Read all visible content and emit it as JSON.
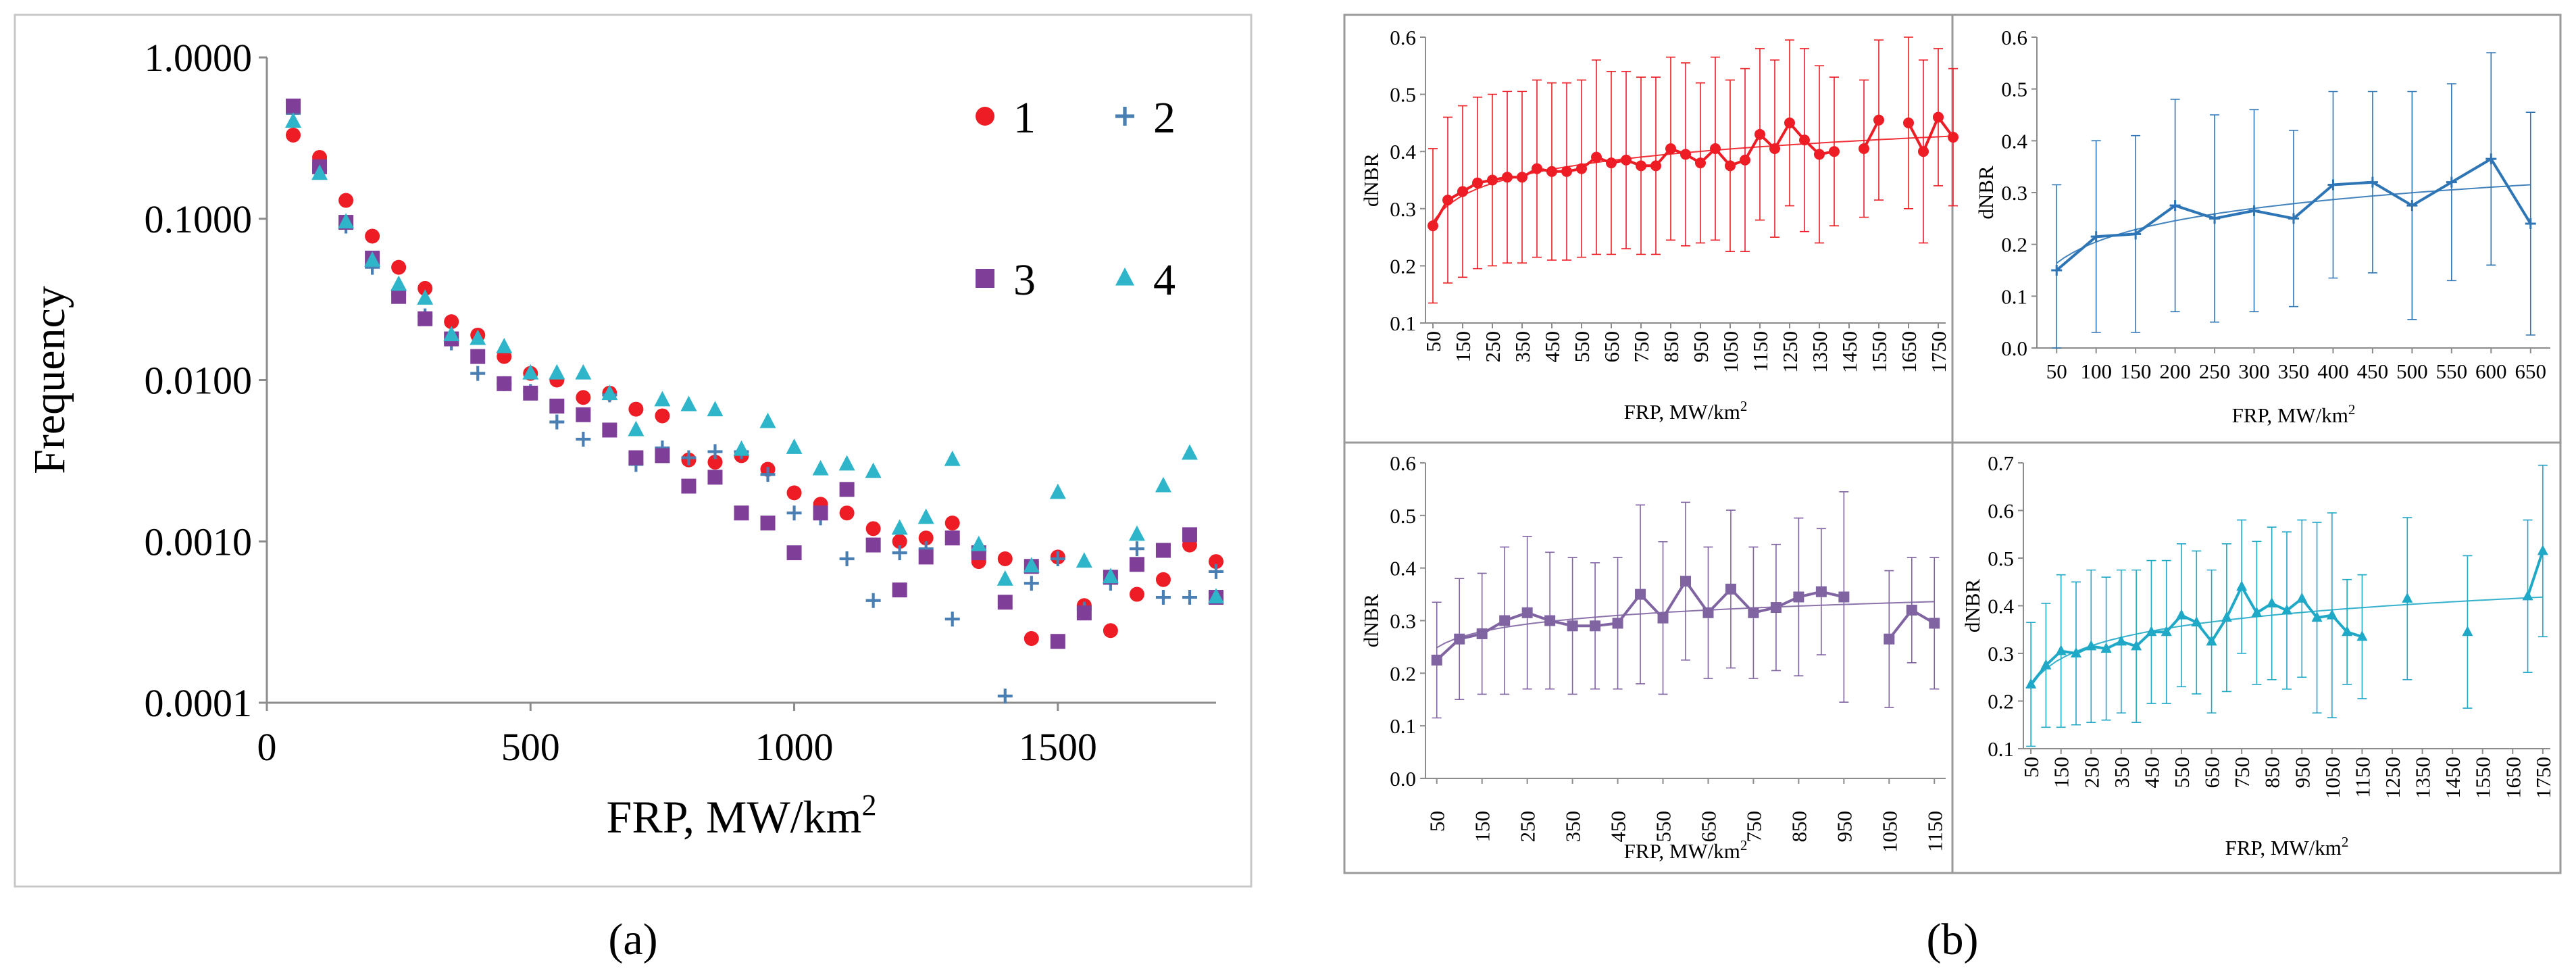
{
  "figure_labels": {
    "a": "(a)",
    "b": "(b)",
    "a_letter": "a",
    "b_letter": "b"
  },
  "colors": {
    "s1": "#ee1c24",
    "s2": "#4a7fb4",
    "s3": "#7f3f98",
    "s4": "#2eb5c9",
    "p1": "#ee1c24",
    "p2": "#2e75b6",
    "p3": "#8064a2",
    "p4": "#1fa9c7"
  },
  "chart_data": [
    {
      "id": "a",
      "type": "scatter",
      "title": "",
      "xlabel": "FRP, MW/km²",
      "xlabel_main": "FRP, MW/km",
      "xlabel_sup": "2",
      "ylabel": "Frequency",
      "yscale": "log",
      "xlim": [
        0,
        1800
      ],
      "ylim": [
        0.0001,
        1.0
      ],
      "xticks": [
        0,
        500,
        1000,
        1500
      ],
      "xtick_labels": [
        "0",
        "500",
        "1000",
        "1500"
      ],
      "yticks": [
        0.0001,
        0.001,
        0.01,
        0.1,
        1.0
      ],
      "ytick_labels": [
        "0.0001",
        "0.0010",
        "0.0100",
        "0.1000",
        "1.0000"
      ],
      "legend_position": "top-right",
      "series": [
        {
          "name": "1",
          "marker": "circle",
          "x": [
            50,
            100,
            150,
            200,
            250,
            300,
            350,
            400,
            450,
            500,
            550,
            600,
            650,
            700,
            750,
            800,
            850,
            900,
            950,
            1000,
            1050,
            1100,
            1150,
            1200,
            1250,
            1300,
            1350,
            1400,
            1450,
            1500,
            1550,
            1600,
            1650,
            1700,
            1750,
            1800
          ],
          "y": [
            0.33,
            0.24,
            0.13,
            0.078,
            0.05,
            0.037,
            0.023,
            0.019,
            0.014,
            0.011,
            0.01,
            0.0078,
            0.0083,
            0.0066,
            0.006,
            0.0032,
            0.0031,
            0.0034,
            0.0028,
            0.002,
            0.0017,
            0.0015,
            0.0012,
            0.001,
            0.00105,
            0.0013,
            0.00075,
            0.00078,
            0.00025,
            0.0008,
            0.0004,
            0.00028,
            0.00047,
            0.00058,
            0.00095,
            0.00075
          ]
        },
        {
          "name": "2",
          "marker": "plus",
          "x": [
            50,
            100,
            150,
            200,
            250,
            300,
            350,
            400,
            450,
            500,
            550,
            600,
            650,
            700,
            750,
            800,
            850,
            900,
            950,
            1000,
            1050,
            1100,
            1150,
            1200,
            1250,
            1300,
            1350,
            1400,
            1450,
            1500,
            1550,
            1600,
            1650,
            1700,
            1750,
            1800
          ],
          "y": [
            0.45,
            0.2,
            0.09,
            0.05,
            0.034,
            0.025,
            0.017,
            0.011,
            0.0095,
            0.0085,
            0.0055,
            0.0043,
            0.0081,
            0.003,
            0.0038,
            0.0033,
            0.0036,
            0.0036,
            0.0026,
            0.0015,
            0.0014,
            0.00078,
            0.00043,
            0.00085,
            0.0009,
            0.00033,
            0.00085,
            0.00011,
            0.00055,
            0.00078,
            0.00038,
            0.00055,
            0.0009,
            0.00045,
            0.00045,
            0.00065
          ]
        },
        {
          "name": "3",
          "marker": "square",
          "x": [
            50,
            100,
            150,
            200,
            250,
            300,
            350,
            400,
            450,
            500,
            550,
            600,
            650,
            700,
            750,
            800,
            850,
            900,
            950,
            1000,
            1050,
            1100,
            1150,
            1200,
            1250,
            1300,
            1350,
            1400,
            1450,
            1500,
            1550,
            1600,
            1650,
            1700,
            1750,
            1800
          ],
          "y": [
            0.5,
            0.21,
            0.095,
            0.057,
            0.033,
            0.024,
            0.018,
            0.014,
            0.0095,
            0.0083,
            0.0069,
            0.0061,
            0.0049,
            0.0033,
            0.0034,
            0.0022,
            0.0025,
            0.0015,
            0.0013,
            0.00085,
            0.0015,
            0.0021,
            0.00095,
            0.0005,
            0.0008,
            0.00105,
            0.00085,
            0.00042,
            0.0007,
            0.00024,
            0.00036,
            0.0006,
            0.00072,
            0.00088,
            0.0011,
            0.00045
          ]
        },
        {
          "name": "4",
          "marker": "triangle",
          "x": [
            50,
            100,
            150,
            200,
            250,
            300,
            350,
            400,
            450,
            500,
            550,
            600,
            650,
            700,
            750,
            800,
            850,
            900,
            950,
            1000,
            1050,
            1100,
            1150,
            1200,
            1250,
            1300,
            1350,
            1400,
            1450,
            1500,
            1550,
            1600,
            1650,
            1700,
            1750,
            1800
          ],
          "y": [
            0.4,
            0.19,
            0.095,
            0.055,
            0.039,
            0.032,
            0.019,
            0.018,
            0.016,
            0.011,
            0.011,
            0.011,
            0.0082,
            0.0049,
            0.0075,
            0.007,
            0.0065,
            0.0037,
            0.0055,
            0.0038,
            0.0028,
            0.003,
            0.0027,
            0.0012,
            0.0014,
            0.0032,
            0.00095,
            0.00058,
            0.0007,
            0.002,
            0.00075,
            0.0006,
            0.0011,
            0.0022,
            0.0035,
            0.00045
          ]
        }
      ]
    },
    {
      "id": "b1",
      "type": "line",
      "xlabel": "FRP, MW/km²",
      "xlabel_main": "FRP, MW/km",
      "xlabel_sup": "2",
      "ylabel": "dNBR",
      "marker": "circle",
      "trend": "log",
      "ylim": [
        0.1,
        0.6
      ],
      "yticks": [
        0.1,
        0.2,
        0.3,
        0.4,
        0.5,
        0.6
      ],
      "ytick_labels": [
        "0.1",
        "0.2",
        "0.3",
        "0.4",
        "0.5",
        "0.6"
      ],
      "xrange": [
        25,
        1775
      ],
      "xtick_labels": [
        "50",
        "150",
        "250",
        "350",
        "450",
        "550",
        "650",
        "750",
        "850",
        "950",
        "1050",
        "1150",
        "1250",
        "1350",
        "1450",
        "1550",
        "1650",
        "1750"
      ],
      "segments": [
        {
          "x": [
            50,
            100,
            150,
            200,
            250,
            300,
            350,
            400,
            450,
            500,
            550,
            600,
            650,
            700,
            750,
            800,
            850,
            900,
            950,
            1000,
            1050,
            1100,
            1150,
            1200,
            1250,
            1300,
            1350,
            1400
          ],
          "y": [
            0.27,
            0.315,
            0.33,
            0.345,
            0.35,
            0.355,
            0.355,
            0.37,
            0.365,
            0.365,
            0.37,
            0.39,
            0.38,
            0.385,
            0.375,
            0.375,
            0.405,
            0.395,
            0.38,
            0.405,
            0.375,
            0.385,
            0.43,
            0.405,
            0.45,
            0.42,
            0.395,
            0.4
          ],
          "err": [
            0.135,
            0.145,
            0.15,
            0.15,
            0.15,
            0.15,
            0.15,
            0.155,
            0.155,
            0.155,
            0.155,
            0.17,
            0.16,
            0.155,
            0.155,
            0.155,
            0.16,
            0.16,
            0.14,
            0.16,
            0.15,
            0.16,
            0.15,
            0.155,
            0.145,
            0.16,
            0.155,
            0.13
          ]
        },
        {
          "x": [
            1500,
            1550
          ],
          "y": [
            0.405,
            0.455
          ],
          "err": [
            0.12,
            0.14
          ]
        },
        {
          "x": [
            1650,
            1700,
            1750,
            1800
          ],
          "y": [
            0.45,
            0.4,
            0.46,
            0.425
          ],
          "err": [
            0.15,
            0.16,
            0.12,
            0.12
          ]
        }
      ]
    },
    {
      "id": "b2",
      "type": "line",
      "xlabel": "FRP, MW/km²",
      "xlabel_main": "FRP, MW/km",
      "xlabel_sup": "2",
      "ylabel": "dNBR",
      "marker": "plus",
      "trend": "log",
      "ylim": [
        0.0,
        0.6
      ],
      "yticks": [
        0.0,
        0.1,
        0.2,
        0.3,
        0.4,
        0.5,
        0.6
      ],
      "ytick_labels": [
        "0.0",
        "0.1",
        "0.2",
        "0.3",
        "0.4",
        "0.5",
        "0.6"
      ],
      "xrange": [
        25,
        675
      ],
      "xtick_labels": [
        "50",
        "100",
        "150",
        "200",
        "250",
        "300",
        "350",
        "400",
        "450",
        "500",
        "550",
        "600",
        "650"
      ],
      "segments": [
        {
          "x": [
            50,
            100,
            150,
            200,
            250,
            300,
            350,
            400,
            450,
            500,
            550,
            600,
            650
          ],
          "y": [
            0.15,
            0.215,
            0.22,
            0.275,
            0.25,
            0.265,
            0.25,
            0.315,
            0.32,
            0.275,
            0.32,
            0.365,
            0.24
          ],
          "err": [
            0.165,
            0.185,
            0.19,
            0.205,
            0.2,
            0.195,
            0.17,
            0.18,
            0.175,
            0.22,
            0.19,
            0.205,
            0.215
          ]
        }
      ]
    },
    {
      "id": "b3",
      "type": "line",
      "xlabel": "FRP, MW/km²",
      "xlabel_main": "FRP, MW/km",
      "xlabel_sup": "2",
      "ylabel": "dNBR",
      "marker": "square",
      "trend": "log",
      "ylim": [
        0.0,
        0.6
      ],
      "yticks": [
        0.0,
        0.1,
        0.2,
        0.3,
        0.4,
        0.5,
        0.6
      ],
      "ytick_labels": [
        "0.0",
        "0.1",
        "0.2",
        "0.3",
        "0.4",
        "0.5",
        "0.6"
      ],
      "xrange": [
        25,
        1175
      ],
      "xtick_labels": [
        "50",
        "150",
        "250",
        "350",
        "450",
        "550",
        "650",
        "750",
        "850",
        "950",
        "1050",
        "1150"
      ],
      "segments": [
        {
          "x": [
            50,
            100,
            150,
            200,
            250,
            300,
            350,
            400,
            450,
            500,
            550,
            600,
            650,
            700,
            750,
            800,
            850,
            900,
            950
          ],
          "y": [
            0.225,
            0.265,
            0.275,
            0.3,
            0.315,
            0.3,
            0.29,
            0.29,
            0.295,
            0.35,
            0.305,
            0.375,
            0.315,
            0.36,
            0.315,
            0.325,
            0.345,
            0.355,
            0.345
          ],
          "err": [
            0.11,
            0.115,
            0.115,
            0.14,
            0.145,
            0.13,
            0.13,
            0.12,
            0.125,
            0.17,
            0.145,
            0.15,
            0.125,
            0.15,
            0.125,
            0.12,
            0.15,
            0.12,
            0.2
          ]
        },
        {
          "x": [
            1050,
            1100,
            1150
          ],
          "y": [
            0.265,
            0.32,
            0.295
          ],
          "err": [
            0.13,
            0.1,
            0.125
          ]
        }
      ]
    },
    {
      "id": "b4",
      "type": "line",
      "xlabel": "FRP, MW/km²",
      "xlabel_main": "FRP, MW/km",
      "xlabel_sup": "2",
      "ylabel": "dNBR",
      "marker": "triangle",
      "trend": "log",
      "ylim": [
        0.1,
        0.7
      ],
      "yticks": [
        0.1,
        0.2,
        0.3,
        0.4,
        0.5,
        0.6,
        0.7
      ],
      "ytick_labels": [
        "0.1",
        "0.2",
        "0.3",
        "0.4",
        "0.5",
        "0.6",
        "0.7"
      ],
      "xrange": [
        25,
        1775
      ],
      "xtick_labels": [
        "50",
        "150",
        "250",
        "350",
        "450",
        "550",
        "650",
        "750",
        "850",
        "950",
        "1050",
        "1150",
        "1250",
        "1350",
        "1450",
        "1550",
        "1650",
        "1750"
      ],
      "segments": [
        {
          "x": [
            50,
            100,
            150,
            200,
            250,
            300,
            350,
            400,
            450,
            500,
            550,
            600,
            650,
            700,
            750,
            800,
            850,
            900,
            950,
            1000,
            1050,
            1100,
            1150
          ],
          "y": [
            0.235,
            0.275,
            0.305,
            0.3,
            0.315,
            0.31,
            0.325,
            0.315,
            0.345,
            0.345,
            0.38,
            0.365,
            0.325,
            0.375,
            0.44,
            0.385,
            0.405,
            0.39,
            0.415,
            0.375,
            0.38,
            0.345,
            0.335
          ],
          "err": [
            0.13,
            0.13,
            0.16,
            0.15,
            0.16,
            0.15,
            0.15,
            0.16,
            0.15,
            0.15,
            0.15,
            0.15,
            0.15,
            0.155,
            0.14,
            0.15,
            0.16,
            0.165,
            0.165,
            0.2,
            0.215,
            0.11,
            0.13
          ]
        },
        {
          "x": [
            1300
          ],
          "y": [
            0.415
          ],
          "err": [
            0.17
          ]
        },
        {
          "x": [
            1500
          ],
          "y": [
            0.345
          ],
          "err": [
            0.16
          ]
        },
        {
          "x": [
            1700,
            1750
          ],
          "y": [
            0.42,
            0.515
          ],
          "err": [
            0.16,
            0.18
          ]
        }
      ]
    }
  ]
}
